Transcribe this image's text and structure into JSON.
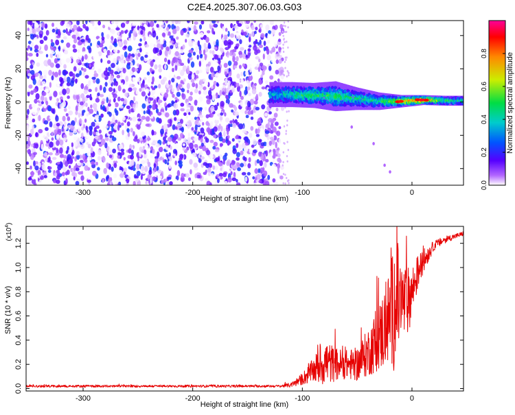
{
  "title": "C2E4.2025.307.06.03.G03",
  "chart_data": [
    {
      "type": "heatmap",
      "title": "C2E4.2025.307.06.03.G03",
      "xlabel": "Height of straight line (km)",
      "ylabel": "Frequency (Hz)",
      "xlim": [
        -352,
        47
      ],
      "ylim": [
        -50,
        49
      ],
      "xticks": [
        -300,
        -200,
        -100,
        0
      ],
      "xtick_labels": [
        "-300",
        "-200",
        "-100",
        "0"
      ],
      "yticks": [
        -40,
        -20,
        0,
        20,
        40
      ],
      "ytick_labels": [
        "-40",
        "-20",
        "0",
        "20",
        "40"
      ],
      "noise_region": {
        "x": [
          -352,
          -118
        ],
        "y": [
          -50,
          49
        ],
        "description_values": "scattered low-amplitude speckle (0.0-0.3)"
      },
      "signal_band": [
        {
          "x": -130,
          "center": 4.5,
          "width": 10,
          "amplitude": 0.35
        },
        {
          "x": -110,
          "center": 4.5,
          "width": 10,
          "amplitude": 0.45
        },
        {
          "x": -90,
          "center": 4.0,
          "width": 10,
          "amplitude": 0.5
        },
        {
          "x": -70,
          "center": 3.5,
          "width": 12,
          "amplitude": 0.5
        },
        {
          "x": -50,
          "center": 2.0,
          "width": 9,
          "amplitude": 0.45
        },
        {
          "x": -30,
          "center": 0.5,
          "width": 7,
          "amplitude": 0.45
        },
        {
          "x": -10,
          "center": 0.5,
          "width": 5,
          "amplitude": 0.75
        },
        {
          "x": 10,
          "center": 1.2,
          "width": 4,
          "amplitude": 0.85
        },
        {
          "x": 30,
          "center": 0.8,
          "width": 4,
          "amplitude": 0.5
        },
        {
          "x": 47,
          "center": 0.8,
          "width": 4,
          "amplitude": 0.45
        }
      ],
      "faint_tail": [
        [
          -55,
          -15
        ],
        [
          -35,
          -25
        ],
        [
          -25,
          -38
        ],
        [
          -20,
          -42
        ]
      ],
      "colorbar": {
        "label": "Normalized spectral amplitude",
        "range": [
          0,
          1
        ],
        "ticks": [
          0.0,
          0.2,
          0.4,
          0.6,
          0.8
        ],
        "tick_labels": [
          "0.0",
          "0.2",
          "0.4",
          "0.6",
          "0.8"
        ],
        "colors": [
          "#ffffff",
          "#b266ff",
          "#5500ff",
          "#0055ff",
          "#00cccc",
          "#00dd44",
          "#ccee00",
          "#ff8800",
          "#ff0000",
          "#ff0099"
        ]
      }
    },
    {
      "type": "line",
      "xlabel": "Height of straight line (km)",
      "ylabel": "SNR (10 * v/v)",
      "exponent_label": "(x10",
      "exponent_power": "4",
      "exponent_close": ")",
      "xlim": [
        -352,
        47
      ],
      "ylim": [
        -0.02,
        1.34
      ],
      "xticks": [
        -300,
        -200,
        -100,
        0
      ],
      "xtick_labels": [
        "-300",
        "-200",
        "-100",
        "0"
      ],
      "yticks": [
        0.0,
        0.2,
        0.4,
        0.6,
        0.8,
        1.0,
        1.2
      ],
      "ytick_labels": [
        "0.0",
        "0.2",
        "0.4",
        "0.6",
        "0.8",
        "1.0",
        "1.2"
      ],
      "series": [
        {
          "name": "SNR",
          "color": "#e60000",
          "x": [
            -352,
            -330,
            -300,
            -250,
            -200,
            -150,
            -120,
            -110,
            -100,
            -90,
            -80,
            -70,
            -60,
            -50,
            -40,
            -30,
            -25,
            -20,
            -15,
            -10,
            -5,
            0,
            5,
            10,
            20,
            30,
            40,
            47
          ],
          "mean": [
            0.02,
            0.02,
            0.02,
            0.02,
            0.02,
            0.02,
            0.02,
            0.03,
            0.08,
            0.15,
            0.22,
            0.2,
            0.2,
            0.2,
            0.3,
            0.42,
            0.5,
            0.6,
            0.72,
            0.72,
            0.7,
            0.8,
            0.95,
            1.05,
            1.18,
            1.23,
            1.26,
            1.28
          ],
          "spread": [
            0.01,
            0.01,
            0.01,
            0.01,
            0.01,
            0.01,
            0.01,
            0.02,
            0.05,
            0.1,
            0.2,
            0.14,
            0.12,
            0.14,
            0.2,
            0.28,
            0.35,
            0.4,
            0.6,
            0.35,
            0.3,
            0.22,
            0.15,
            0.1,
            0.04,
            0.03,
            0.02,
            0.02
          ]
        }
      ]
    }
  ]
}
